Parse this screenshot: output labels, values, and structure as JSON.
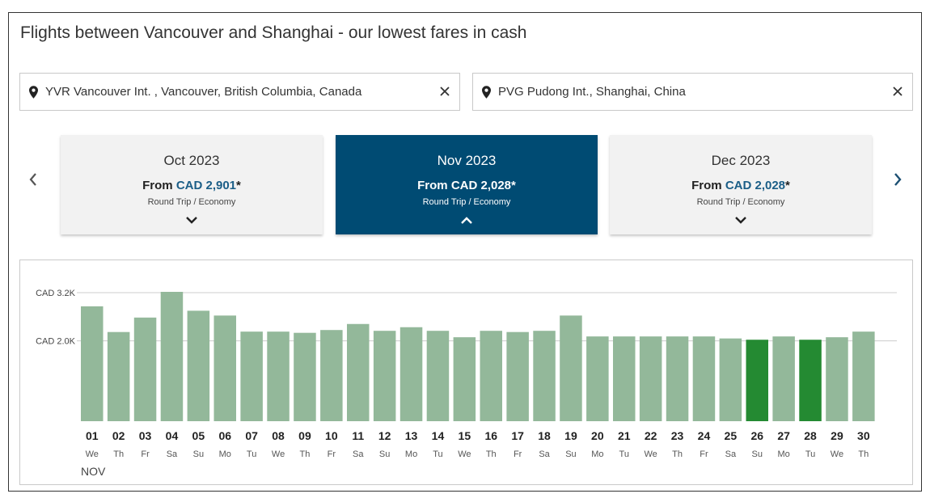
{
  "title": "Flights between Vancouver and Shanghai - our lowest fares in cash",
  "origin": {
    "value": "YVR Vancouver Int. , Vancouver, British Columbia, Canada",
    "clear_icon": "close-icon",
    "pin_icon": "map-pin-icon"
  },
  "destination": {
    "value": "PVG Pudong Int., Shanghai, China",
    "clear_icon": "close-icon",
    "pin_icon": "map-pin-icon"
  },
  "months": [
    {
      "name": "Oct 2023",
      "from_label": "From ",
      "price": "CAD 2,901",
      "asterisk": "*",
      "trip": "Round Trip / Economy",
      "selected": false
    },
    {
      "name": "Nov 2023",
      "from_label": "From ",
      "price": "CAD 2,028",
      "asterisk": "*",
      "trip": "Round Trip / Economy",
      "selected": true
    },
    {
      "name": "Dec 2023",
      "from_label": "From ",
      "price": "CAD 2,028",
      "asterisk": "*",
      "trip": "Round Trip / Economy",
      "selected": false
    }
  ],
  "colors": {
    "selected_card": "#004b73",
    "price_link": "#1b5e87",
    "bar": "#93b89a",
    "bar_lowest": "#248a32",
    "gridline": "#cccccc"
  },
  "chart_data": {
    "type": "bar",
    "month_label": "NOV",
    "ytick_labels": [
      "CAD 3.2K",
      "CAD 2.0K"
    ],
    "yticks": [
      3200,
      2000
    ],
    "ylim": [
      0,
      3200
    ],
    "grid": true,
    "days": [
      "01",
      "02",
      "03",
      "04",
      "05",
      "06",
      "07",
      "08",
      "09",
      "10",
      "11",
      "12",
      "13",
      "14",
      "15",
      "16",
      "17",
      "18",
      "19",
      "20",
      "21",
      "22",
      "23",
      "24",
      "25",
      "26",
      "27",
      "28",
      "29",
      "30"
    ],
    "weekdays": [
      "We",
      "Th",
      "Fr",
      "Sa",
      "Su",
      "Mo",
      "Tu",
      "We",
      "Th",
      "Fr",
      "Sa",
      "Su",
      "Mo",
      "Tu",
      "We",
      "Th",
      "Fr",
      "Sa",
      "Su",
      "Mo",
      "Tu",
      "We",
      "Th",
      "Fr",
      "Sa",
      "Su",
      "Mo",
      "Tu",
      "We",
      "Th"
    ],
    "values": [
      2860,
      2220,
      2580,
      3220,
      2750,
      2630,
      2230,
      2230,
      2200,
      2270,
      2420,
      2250,
      2340,
      2250,
      2090,
      2250,
      2220,
      2250,
      2630,
      2110,
      2110,
      2110,
      2110,
      2110,
      2060,
      2028,
      2110,
      2028,
      2090,
      2230
    ],
    "lowest_days": [
      "26",
      "28"
    ]
  }
}
